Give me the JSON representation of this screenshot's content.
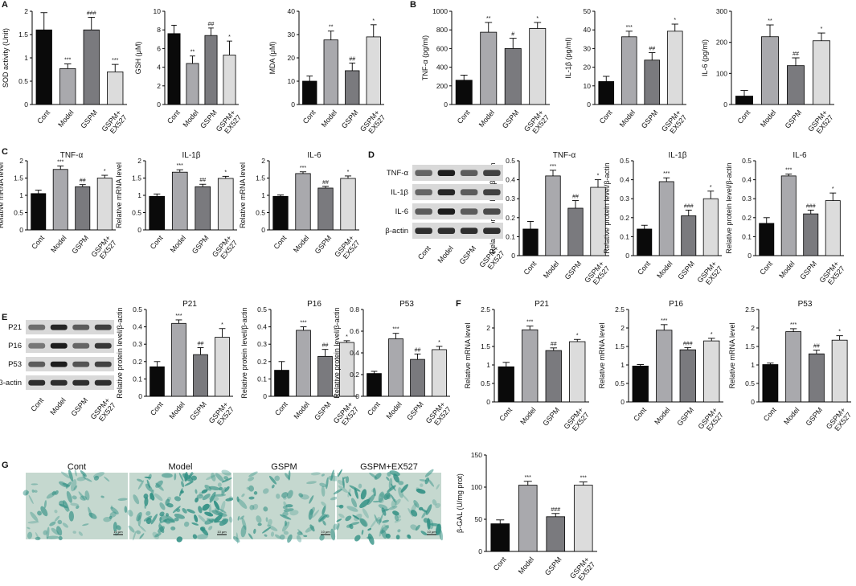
{
  "panel_labels": [
    "A",
    "B",
    "C",
    "D",
    "E",
    "F",
    "G"
  ],
  "colors": {
    "bar": [
      "#0a0a0a",
      "#a9a9ad",
      "#7a7a7e",
      "#dcdcdc"
    ],
    "stain": "#2f8f83",
    "cell_bg": "#c5d8cf"
  },
  "chart_data": [
    {
      "type": "bar",
      "panel": "A",
      "categories": [
        "Cont",
        "Model",
        "GSPM",
        "GSPM+\nEX527"
      ],
      "values": [
        1.6,
        0.77,
        1.6,
        0.7
      ],
      "errors": [
        0.37,
        0.1,
        0.27,
        0.16
      ],
      "sig": [
        "",
        "***",
        "###",
        "***"
      ],
      "ylabel": "SOD activity (Unit)",
      "ylim": [
        0,
        2.0
      ],
      "ticks": [
        0,
        0.5,
        1.0,
        1.5,
        2.0
      ]
    },
    {
      "type": "bar",
      "panel": "A",
      "categories": [
        "Cont",
        "Model",
        "GSPM",
        "GSPM+\nEX527"
      ],
      "values": [
        7.6,
        4.4,
        7.4,
        5.3
      ],
      "errors": [
        0.9,
        0.8,
        0.8,
        1.5
      ],
      "sig": [
        "",
        "**",
        "##",
        "*"
      ],
      "ylabel": "GSH (μM)",
      "ylim": [
        0,
        10
      ],
      "ticks": [
        0,
        2,
        4,
        6,
        8,
        10
      ]
    },
    {
      "type": "bar",
      "panel": "A",
      "categories": [
        "Cont",
        "Model",
        "GSPM",
        "GSPM+\nEX527"
      ],
      "values": [
        10,
        27.7,
        14.5,
        29
      ],
      "errors": [
        2.2,
        3.8,
        3.3,
        5.2
      ],
      "sig": [
        "",
        "**",
        "##",
        "*"
      ],
      "ylabel": "MDA (μM)",
      "ylim": [
        0,
        40
      ],
      "ticks": [
        0,
        10,
        20,
        30,
        40
      ]
    },
    {
      "type": "bar",
      "panel": "B",
      "categories": [
        "Cont",
        "Model",
        "GSPM",
        "GSPM+\nEX527"
      ],
      "values": [
        260,
        775,
        600,
        815
      ],
      "errors": [
        55,
        105,
        110,
        65
      ],
      "sig": [
        "",
        "**",
        "#",
        "*"
      ],
      "ylabel": "TNF-α (pg/ml)",
      "ylim": [
        0,
        1000
      ],
      "ticks": [
        0,
        200,
        400,
        600,
        800,
        1000
      ]
    },
    {
      "type": "bar",
      "panel": "B",
      "categories": [
        "Cont",
        "Model",
        "GSPM",
        "GSPM+\nEX527"
      ],
      "values": [
        12.3,
        36.3,
        23.8,
        39.3
      ],
      "errors": [
        2.8,
        3,
        4,
        3.8
      ],
      "sig": [
        "",
        "***",
        "##",
        "*"
      ],
      "ylabel": "IL-1β (pg/ml)",
      "ylim": [
        0,
        50
      ],
      "ticks": [
        0,
        10,
        20,
        30,
        40,
        50
      ]
    },
    {
      "type": "bar",
      "panel": "B",
      "categories": [
        "Cont",
        "Model",
        "GSPM",
        "GSPM+\nEX527"
      ],
      "values": [
        27,
        218,
        125,
        205
      ],
      "errors": [
        18,
        38,
        25,
        25
      ],
      "sig": [
        "",
        "**",
        "##",
        "*"
      ],
      "ylabel": "IL-6 (pg/ml)",
      "ylim": [
        0,
        300
      ],
      "ticks": [
        0,
        100,
        200,
        300
      ]
    },
    {
      "type": "bar",
      "panel": "C",
      "title": "TNF-α",
      "categories": [
        "Cont",
        "Model",
        "GSPM",
        "GSPM+\nEX527"
      ],
      "values": [
        1.05,
        1.75,
        1.25,
        1.5
      ],
      "errors": [
        0.1,
        0.1,
        0.06,
        0.08
      ],
      "sig": [
        "",
        "***",
        "##",
        "*"
      ],
      "ylabel": "Relative mRNA level",
      "ylim": [
        0,
        2.0
      ],
      "ticks": [
        0,
        0.5,
        1.0,
        1.5,
        2.0
      ]
    },
    {
      "type": "bar",
      "panel": "C",
      "title": "IL-1β",
      "categories": [
        "Cont",
        "Model",
        "GSPM",
        "GSPM+\nEX527"
      ],
      "values": [
        0.97,
        1.67,
        1.25,
        1.49
      ],
      "errors": [
        0.07,
        0.07,
        0.07,
        0.06
      ],
      "sig": [
        "",
        "***",
        "##",
        "*"
      ],
      "ylabel": "Relative mRNA level",
      "ylim": [
        0,
        2.0
      ],
      "ticks": [
        0,
        0.5,
        1.0,
        1.5,
        2.0
      ]
    },
    {
      "type": "bar",
      "panel": "C",
      "title": "IL-6",
      "categories": [
        "Cont",
        "Model",
        "GSPM",
        "GSPM+\nEX527"
      ],
      "values": [
        0.97,
        1.63,
        1.21,
        1.49
      ],
      "errors": [
        0.04,
        0.05,
        0.05,
        0.07
      ],
      "sig": [
        "",
        "***",
        "##",
        "*"
      ],
      "ylabel": "Relative mRNA level",
      "ylim": [
        0,
        2.0
      ],
      "ticks": [
        0,
        0.5,
        1.0,
        1.5,
        2.0
      ]
    },
    {
      "type": "bar",
      "panel": "D",
      "title": "TNF-α",
      "categories": [
        "Cont",
        "Model",
        "GSPM",
        "GSPM+\nEX527"
      ],
      "values": [
        0.14,
        0.42,
        0.25,
        0.36
      ],
      "errors": [
        0.04,
        0.03,
        0.04,
        0.04
      ],
      "sig": [
        "",
        "***",
        "##",
        "*"
      ],
      "ylabel": "Relative protein level/β-actin",
      "ylim": [
        0,
        0.5
      ],
      "ticks": [
        0,
        0.1,
        0.2,
        0.3,
        0.4,
        0.5
      ]
    },
    {
      "type": "bar",
      "panel": "D",
      "title": "IL-1β",
      "categories": [
        "Cont",
        "Model",
        "GSPM",
        "GSPM+\nEX527"
      ],
      "values": [
        0.14,
        0.39,
        0.21,
        0.3
      ],
      "errors": [
        0.02,
        0.02,
        0.03,
        0.04
      ],
      "sig": [
        "",
        "***",
        "###",
        "*"
      ],
      "ylabel": "Relative protein level/β-actin",
      "ylim": [
        0,
        0.5
      ],
      "ticks": [
        0,
        0.1,
        0.2,
        0.3,
        0.4,
        0.5
      ]
    },
    {
      "type": "bar",
      "panel": "D",
      "title": "IL-6",
      "categories": [
        "Cont",
        "Model",
        "GSPM",
        "GSPM+\nEX527"
      ],
      "values": [
        0.17,
        0.42,
        0.22,
        0.29
      ],
      "errors": [
        0.03,
        0.01,
        0.02,
        0.04
      ],
      "sig": [
        "",
        "***",
        "###",
        "*"
      ],
      "ylabel": "Relative protein level/β-actin",
      "ylim": [
        0,
        0.5
      ],
      "ticks": [
        0,
        0.1,
        0.2,
        0.3,
        0.4,
        0.5
      ]
    },
    {
      "type": "bar",
      "panel": "E",
      "title": "P21",
      "categories": [
        "Cont",
        "Model",
        "GSPM",
        "GSPM+\nEX527"
      ],
      "values": [
        0.17,
        0.42,
        0.24,
        0.34
      ],
      "errors": [
        0.03,
        0.02,
        0.04,
        0.05
      ],
      "sig": [
        "",
        "***",
        "##",
        "*"
      ],
      "ylabel": "Relative protein level/β-actin",
      "ylim": [
        0,
        0.5
      ],
      "ticks": [
        0,
        0.1,
        0.2,
        0.3,
        0.4,
        0.5
      ]
    },
    {
      "type": "bar",
      "panel": "E",
      "title": "P16",
      "categories": [
        "Cont",
        "Model",
        "GSPM",
        "GSPM+\nEX527"
      ],
      "values": [
        0.15,
        0.38,
        0.23,
        0.31
      ],
      "errors": [
        0.05,
        0.02,
        0.04,
        0.01
      ],
      "sig": [
        "",
        "***",
        "##",
        "*"
      ],
      "ylabel": "Relative protein level/β-actin",
      "ylim": [
        0,
        0.5
      ],
      "ticks": [
        0,
        0.1,
        0.2,
        0.3,
        0.4,
        0.5
      ]
    },
    {
      "type": "bar",
      "panel": "E",
      "title": "P53",
      "categories": [
        "Cont",
        "Model",
        "GSPM",
        "GSPM+\nEX527"
      ],
      "values": [
        0.21,
        0.53,
        0.34,
        0.43
      ],
      "errors": [
        0.02,
        0.05,
        0.05,
        0.03
      ],
      "sig": [
        "",
        "***",
        "##",
        "*"
      ],
      "ylabel": "Relative protein level/β-actin",
      "ylim": [
        0,
        0.8
      ],
      "ticks": [
        0,
        0.2,
        0.4,
        0.6,
        0.8
      ]
    },
    {
      "type": "bar",
      "panel": "F",
      "title": "P21",
      "categories": [
        "Cont",
        "Model",
        "GSPM",
        "GSPM+\nEX527"
      ],
      "values": [
        0.95,
        1.95,
        1.39,
        1.63
      ],
      "errors": [
        0.12,
        0.1,
        0.07,
        0.06
      ],
      "sig": [
        "",
        "***",
        "##",
        "*"
      ],
      "ylabel": "Relative mRNA level",
      "ylim": [
        0,
        2.5
      ],
      "ticks": [
        0,
        0.5,
        1.0,
        1.5,
        2.0,
        2.5
      ]
    },
    {
      "type": "bar",
      "panel": "F",
      "title": "P16",
      "categories": [
        "Cont",
        "Model",
        "GSPM",
        "GSPM+\nEX527"
      ],
      "values": [
        0.97,
        1.94,
        1.41,
        1.65
      ],
      "errors": [
        0.04,
        0.15,
        0.06,
        0.07
      ],
      "sig": [
        "",
        "***",
        "###",
        "*"
      ],
      "ylabel": "Relative mRNA level",
      "ylim": [
        0,
        2.5
      ],
      "ticks": [
        0,
        0.5,
        1.0,
        1.5,
        2.0,
        2.5
      ]
    },
    {
      "type": "bar",
      "panel": "F",
      "title": "P53",
      "categories": [
        "Cont",
        "Model",
        "GSPM",
        "GSPM+\nEX527"
      ],
      "values": [
        1.01,
        1.9,
        1.3,
        1.67
      ],
      "errors": [
        0.04,
        0.08,
        0.1,
        0.12
      ],
      "sig": [
        "",
        "***",
        "##",
        "*"
      ],
      "ylabel": "Relative mRNA level",
      "ylim": [
        0,
        2.5
      ],
      "ticks": [
        0,
        0.5,
        1.0,
        1.5,
        2.0,
        2.5
      ]
    },
    {
      "type": "bar",
      "panel": "G",
      "categories": [
        "Cont",
        "Model",
        "GSPM",
        "GSPM+\nEX527"
      ],
      "values": [
        43,
        103,
        54,
        103
      ],
      "errors": [
        6,
        6,
        5,
        5
      ],
      "sig": [
        "",
        "***",
        "###",
        "***"
      ],
      "ylabel": "β-GAL (U/mg prot)",
      "ylim": [
        0,
        150
      ],
      "ticks": [
        0,
        50,
        100,
        150
      ]
    }
  ],
  "blot_d": {
    "labels": [
      "TNF-α",
      "IL-1β",
      "IL-6",
      "β-actin"
    ],
    "lanes": [
      "Cont",
      "Model",
      "GSPM",
      "GSPM+\nEX527"
    ],
    "intensity": [
      [
        0.55,
        0.95,
        0.6,
        0.75
      ],
      [
        0.55,
        0.9,
        0.6,
        0.75
      ],
      [
        0.6,
        0.95,
        0.6,
        0.7
      ],
      [
        0.85,
        0.85,
        0.85,
        0.85
      ]
    ]
  },
  "blot_e": {
    "labels": [
      "P21",
      "P16",
      "P53",
      "β-actin"
    ],
    "lanes": [
      "Cont",
      "Model",
      "GSPM",
      "GSPM+\nEX527"
    ],
    "intensity": [
      [
        0.5,
        0.9,
        0.6,
        0.75
      ],
      [
        0.45,
        0.95,
        0.55,
        0.8
      ],
      [
        0.6,
        0.95,
        0.65,
        0.75
      ],
      [
        0.85,
        0.85,
        0.85,
        0.85
      ]
    ]
  },
  "micro": {
    "captions": [
      "Cont",
      "Model",
      "GSPM",
      "GSPM+EX527"
    ],
    "density": [
      0.35,
      0.85,
      0.45,
      0.8
    ],
    "scale": "10 μm"
  }
}
